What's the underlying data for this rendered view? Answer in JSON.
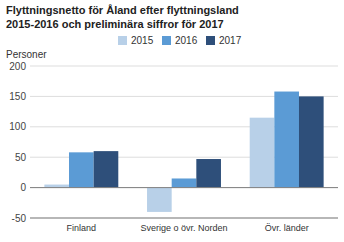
{
  "chart_data": {
    "type": "bar",
    "title": "Flyttningsnetto för Åland efter flyttningsland",
    "subtitle": "2015-2016 och preliminära siffror för 2017",
    "ylabel": "Personer",
    "categories": [
      "Finland",
      "Sverige o övr. Norden",
      "Övr. länder"
    ],
    "series": [
      {
        "name": "2015",
        "color": "#b8d0e8",
        "values": [
          5,
          -40,
          115
        ]
      },
      {
        "name": "2016",
        "color": "#5b9bd5",
        "values": [
          58,
          15,
          158
        ]
      },
      {
        "name": "2017",
        "color": "#2e4f7a",
        "values": [
          60,
          47,
          150
        ]
      }
    ],
    "ylim": [
      -50,
      200
    ],
    "yticks": [
      -50,
      0,
      50,
      100,
      150,
      200
    ],
    "grid": true,
    "legend": "top"
  }
}
